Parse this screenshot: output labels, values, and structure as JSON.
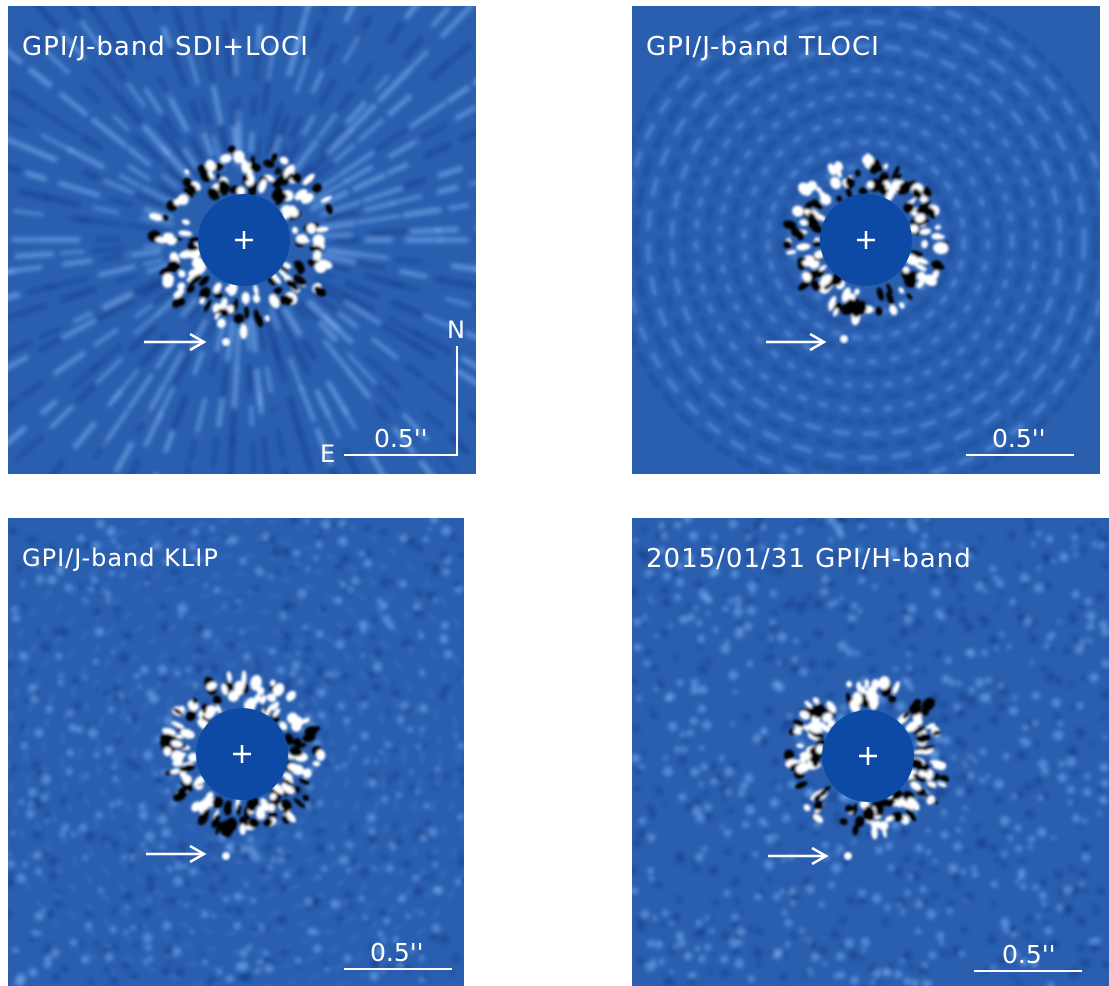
{
  "colors": {
    "background": "#2a5fb0",
    "mask": "#0c4aa6",
    "white": "#ffffff",
    "dark": "#000000"
  },
  "panels": [
    {
      "label": "GPI/J-band SDI+LOCI",
      "scale": "0.5''",
      "compass": {
        "north": "N",
        "east": "E"
      },
      "pattern": "radial-streaks"
    },
    {
      "label": "GPI/J-band TLOCI",
      "scale": "0.5''",
      "pattern": "rings"
    },
    {
      "label": "GPI/J-band KLIP",
      "scale": "0.5''",
      "pattern": "speckle-ring"
    },
    {
      "label": "2015/01/31 GPI/H-band",
      "scale": "0.5''",
      "pattern": "mottled"
    }
  ]
}
